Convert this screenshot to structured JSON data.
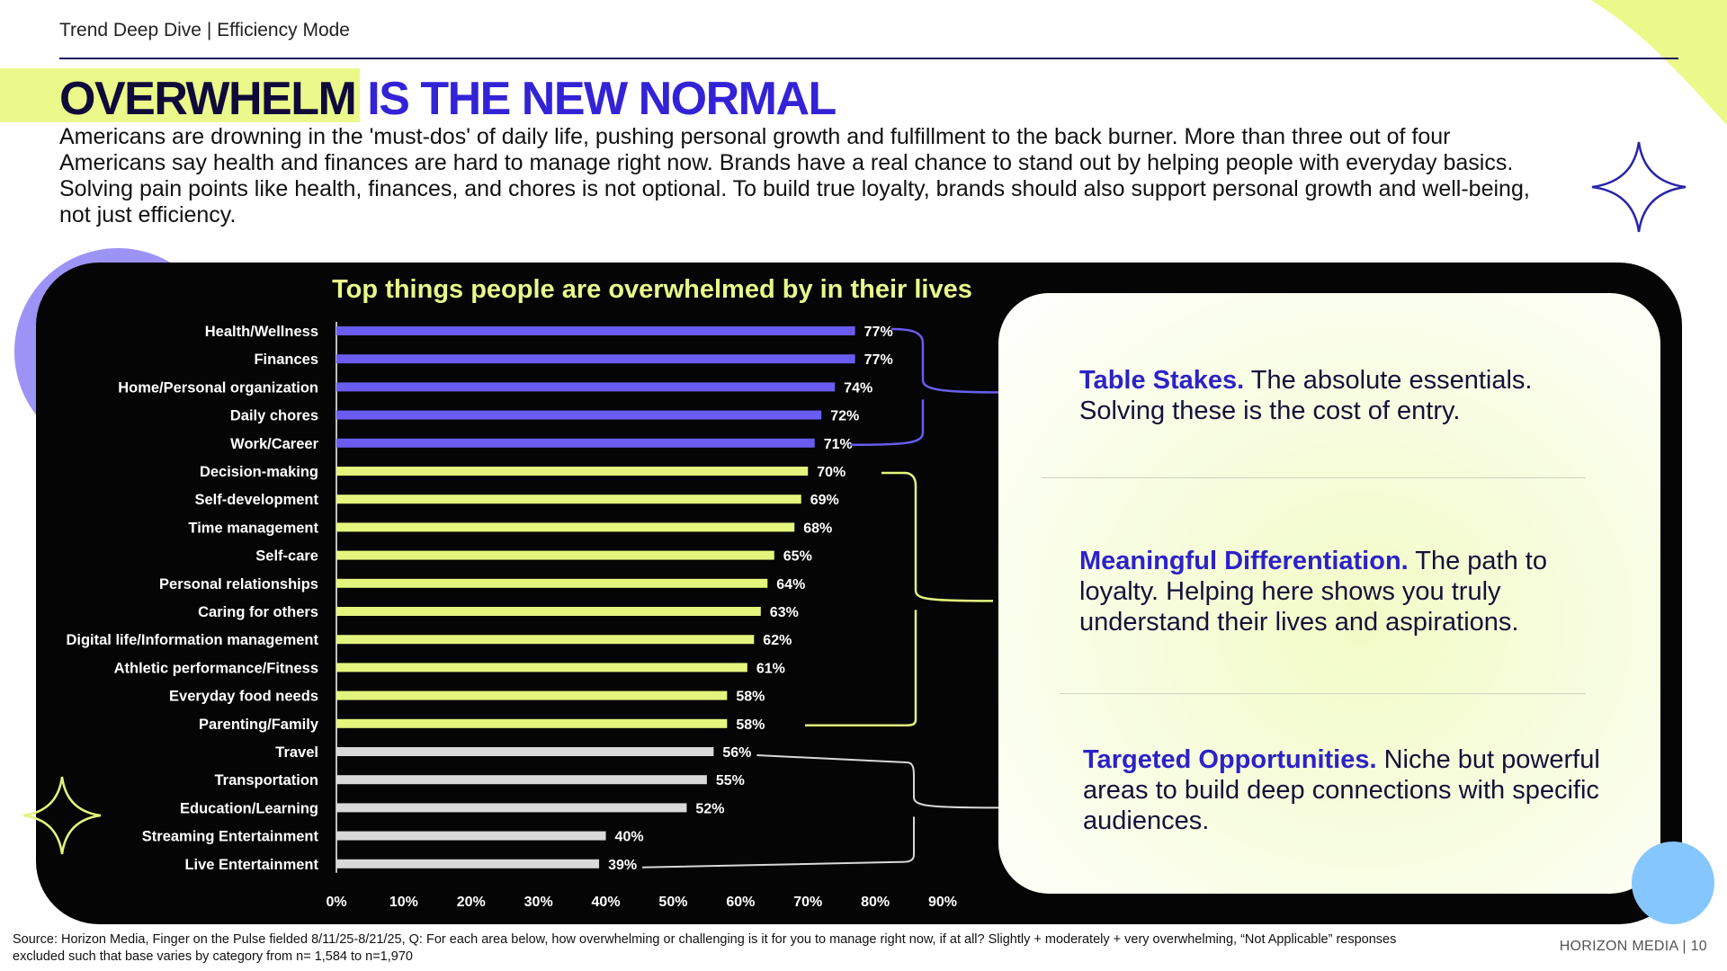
{
  "header": {
    "section": "Trend Deep Dive",
    "separator": "|",
    "mode": "Efficiency Mode"
  },
  "title": {
    "part1": "OVERWHELM",
    "part2": "IS THE NEW NORMAL"
  },
  "intro": "Americans are drowning in the 'must-dos' of daily life, pushing personal growth and fulfillment to the back burner. More than three out of four Americans say health and finances are hard to manage right now. Brands have a real chance to stand out by helping people with everyday basics. Solving pain points like health, finances, and chores is not optional. To build true loyalty, brands should also support personal growth and well-being, not just efficiency.",
  "colors": {
    "tier1": "#6a5cf0",
    "tier2": "#e3f57d",
    "tier3": "#d9d9d9",
    "dark_navy": "#0f0a3a",
    "brand_blue": "#3322d6",
    "lime": "#e8f98b"
  },
  "chart_data": {
    "type": "bar",
    "orientation": "horizontal",
    "title": "Top things people are overwhelmed by in their lives",
    "categories": [
      "Health/Wellness",
      "Finances",
      "Home/Personal organization",
      "Daily chores",
      "Work/Career",
      "Decision-making",
      "Self-development",
      "Time management",
      "Self-care",
      "Personal relationships",
      "Caring for others",
      "Digital life/Information management",
      "Athletic performance/Fitness",
      "Everyday food needs",
      "Parenting/Family",
      "Travel",
      "Transportation",
      "Education/Learning",
      "Streaming Entertainment",
      "Live Entertainment"
    ],
    "values": [
      77,
      77,
      74,
      72,
      71,
      70,
      69,
      68,
      65,
      64,
      63,
      62,
      61,
      58,
      58,
      56,
      55,
      52,
      40,
      39
    ],
    "value_labels": [
      "77%",
      "77%",
      "74%",
      "72%",
      "71%",
      "70%",
      "69%",
      "68%",
      "65%",
      "64%",
      "63%",
      "62%",
      "61%",
      "58%",
      "58%",
      "56%",
      "55%",
      "52%",
      "40%",
      "39%"
    ],
    "tiers": [
      1,
      1,
      1,
      1,
      1,
      2,
      2,
      2,
      2,
      2,
      2,
      2,
      2,
      2,
      2,
      3,
      3,
      3,
      3,
      3
    ],
    "xlim": [
      0,
      90
    ],
    "xticks": [
      "0%",
      "10%",
      "20%",
      "30%",
      "40%",
      "50%",
      "60%",
      "70%",
      "80%",
      "90%"
    ],
    "groups": [
      {
        "name": "Table Stakes",
        "range": [
          0,
          4
        ]
      },
      {
        "name": "Meaningful Differentiation",
        "range": [
          5,
          14
        ]
      },
      {
        "name": "Targeted Opportunities",
        "range": [
          15,
          19
        ]
      }
    ]
  },
  "callouts": [
    {
      "heading": "Table Stakes.",
      "body": " The absolute essentials. Solving these is the cost of entry."
    },
    {
      "heading": "Meaningful Differentiation.",
      "body": " The path to loyalty. Helping here shows you truly understand their lives and aspirations."
    },
    {
      "heading": "Targeted Opportunities.",
      "body": " Niche but powerful areas to build deep connections with specific audiences."
    }
  ],
  "footer": {
    "source": "Source: Horizon Media, Finger on the Pulse fielded 8/11/25-8/21/25, Q: For each area below, how overwhelming or challenging is it for you to manage right now, if at all? Slightly + moderately  + very overwhelming, “Not Applicable” responses excluded such that base varies by category from n= 1,584 to n=1,970",
    "brand": "HORIZON MEDIA",
    "page_separator": "|",
    "page": "10"
  }
}
